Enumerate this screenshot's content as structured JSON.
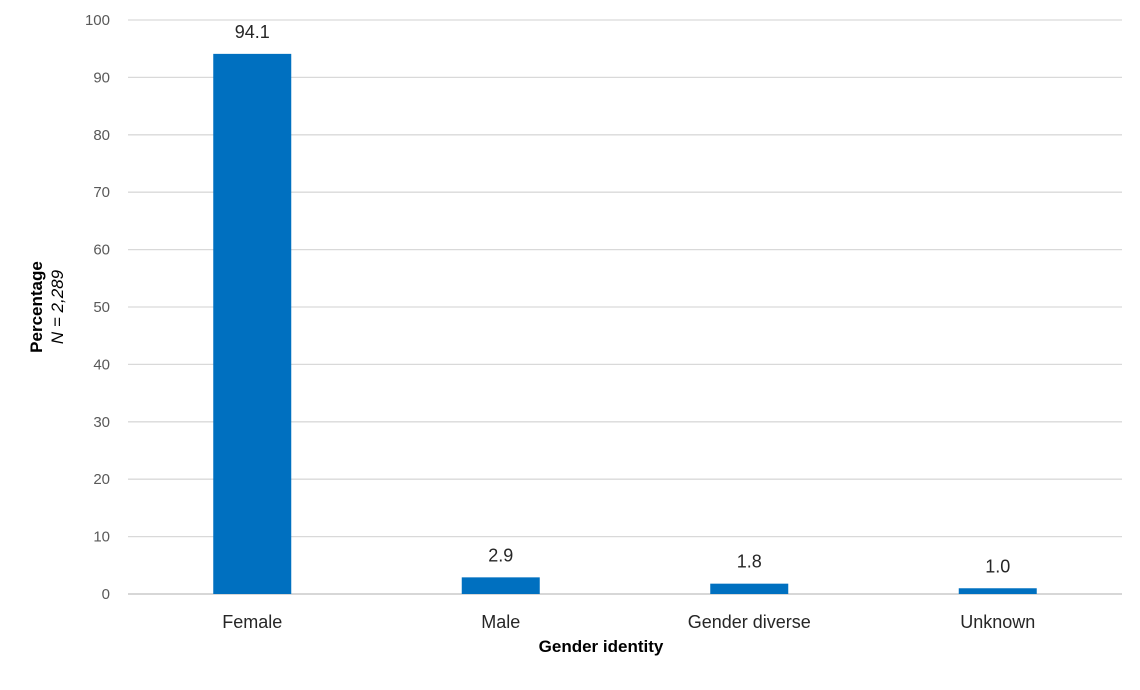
{
  "chart_data": {
    "type": "bar",
    "categories": [
      "Female",
      "Male",
      "Gender diverse",
      "Unknown"
    ],
    "values": [
      94.1,
      2.9,
      1.8,
      1.0
    ],
    "value_labels": [
      "94.1",
      "2.9",
      "1.8",
      "1.0"
    ],
    "title": "",
    "xlabel": "Gender identity",
    "ylabel": "Percentage",
    "ylabel_sub": "N = 2,289",
    "ylim": [
      0,
      100
    ],
    "yticks": [
      0,
      10,
      20,
      30,
      40,
      50,
      60,
      70,
      80,
      90,
      100
    ],
    "grid": true,
    "bar_color": "#0070C0"
  }
}
